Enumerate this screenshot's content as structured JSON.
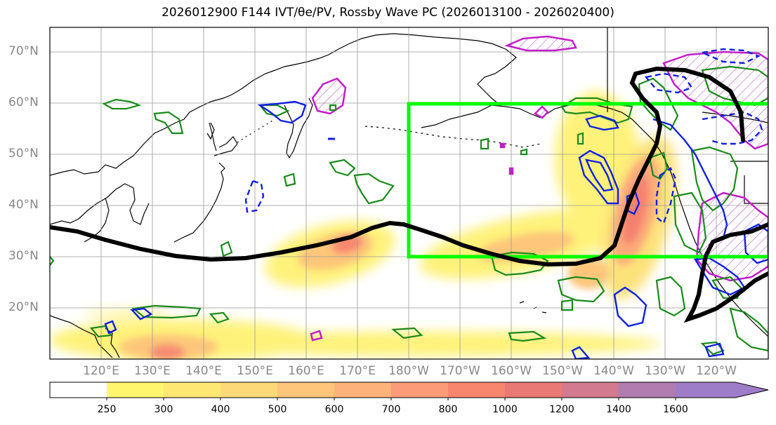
{
  "title": "2026012900 F144 IVT/θe/PV, Rossby Wave PC (2026013100 - 2026020400)",
  "map": {
    "lat_labels": [
      "70°N",
      "60°N",
      "50°N",
      "40°N",
      "30°N",
      "20°N"
    ],
    "lon_labels": [
      "120°E",
      "130°E",
      "140°E",
      "150°E",
      "160°E",
      "170°E",
      "180°W",
      "170°W",
      "160°W",
      "150°W",
      "140°W",
      "130°W",
      "120°W"
    ],
    "box_color": "#00ff00",
    "jet_color": "#000000"
  },
  "colorbar": {
    "levels": [
      "250",
      "300",
      "400",
      "500",
      "600",
      "700",
      "800",
      "1000",
      "1200",
      "1400",
      "1600"
    ],
    "colors": [
      "#ffffff",
      "#fff66e",
      "#fee873",
      "#fed977",
      "#fdc67a",
      "#fdb27a",
      "#fc9b77",
      "#f8866f",
      "#e97974",
      "#d27a8f",
      "#b17cb0",
      "#9e7dc8"
    ]
  }
}
